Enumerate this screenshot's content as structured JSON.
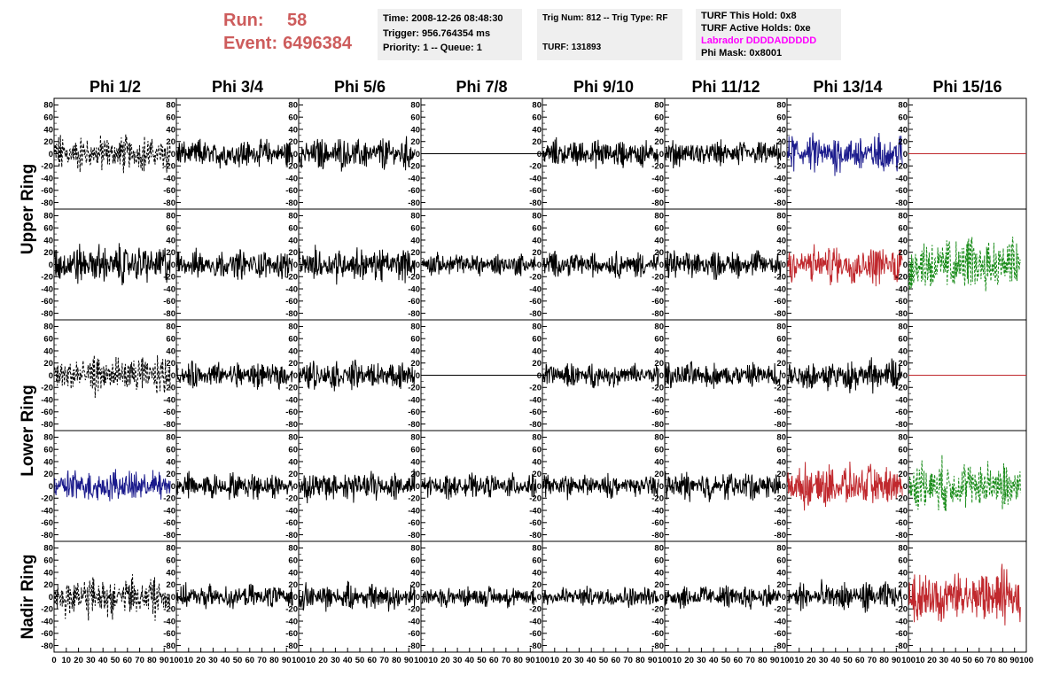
{
  "header": {
    "run_label": "Run:",
    "run_value": "58",
    "event_label": "Event:",
    "event_value": "6496384",
    "box1": [
      "Time: 2008-12-26 08:48:30",
      "Trigger: 956.764354 ms",
      "Priority: 1 -- Queue: 1"
    ],
    "box2": [
      "Trig Num: 812 -- Trig Type: RF",
      "",
      "TURF: 131893"
    ],
    "box3": [
      "TURF This Hold: 0x8",
      "TURF Active Holds: 0xe",
      "Labrador DDDDADDDDD",
      "Phi Mask: 0x8001"
    ],
    "labrador_color": "#ff00ff"
  },
  "chart_data": {
    "type": "line",
    "columns": [
      "Phi 1/2",
      "Phi 3/4",
      "Phi 5/6",
      "Phi 7/8",
      "Phi 9/10",
      "Phi 11/12",
      "Phi 13/14",
      "Phi 15/16"
    ],
    "row_groups": [
      {
        "label": "Upper Ring",
        "rows": [
          0,
          1
        ]
      },
      {
        "label": "Lower Ring",
        "rows": [
          2,
          3
        ]
      },
      {
        "label": "Nadir Ring",
        "rows": [
          4
        ]
      }
    ],
    "ylim": [
      -85,
      85
    ],
    "yticks": [
      80,
      60,
      40,
      20,
      0,
      -20,
      -40,
      -60,
      -80
    ],
    "xlim": [
      0,
      100
    ],
    "xticks": [
      0,
      10,
      20,
      30,
      40,
      50,
      60,
      70,
      80,
      90,
      100
    ],
    "xtick_labels_bottom": [
      "0",
      "10",
      "20",
      "30",
      "40",
      "50",
      "60",
      "70",
      "80",
      "90",
      "100"
    ],
    "colors": {
      "black": "#000000",
      "blue": "#1a1a8c",
      "red": "#c0282d",
      "green": "#1a8c1a"
    },
    "panels": [
      [
        {
          "style": "dashed",
          "color": "black",
          "amp": 28
        },
        {
          "style": "solid",
          "color": "black",
          "amp": 22
        },
        {
          "style": "solid",
          "color": "black",
          "amp": 24
        },
        {
          "style": "flat",
          "color": "black",
          "amp": 0
        },
        {
          "style": "solid",
          "color": "black",
          "amp": 22
        },
        {
          "style": "solid",
          "color": "black",
          "amp": 20
        },
        {
          "style": "solid",
          "color": "blue",
          "amp": 30
        },
        {
          "style": "flat",
          "color": "red",
          "amp": 0
        }
      ],
      [
        {
          "style": "solid",
          "color": "black",
          "amp": 30
        },
        {
          "style": "solid",
          "color": "black",
          "amp": 22
        },
        {
          "style": "solid",
          "color": "black",
          "amp": 26
        },
        {
          "style": "solid",
          "color": "black",
          "amp": 18
        },
        {
          "style": "solid",
          "color": "black",
          "amp": 20
        },
        {
          "style": "solid",
          "color": "black",
          "amp": 22
        },
        {
          "style": "solid",
          "color": "red",
          "amp": 30
        },
        {
          "style": "dashed",
          "color": "green",
          "amp": 45
        }
      ],
      [
        {
          "style": "dashed",
          "color": "black",
          "amp": 30
        },
        {
          "style": "solid",
          "color": "black",
          "amp": 20
        },
        {
          "style": "solid",
          "color": "black",
          "amp": 22
        },
        {
          "style": "flat",
          "color": "black",
          "amp": 0
        },
        {
          "style": "solid",
          "color": "black",
          "amp": 18
        },
        {
          "style": "solid",
          "color": "black",
          "amp": 20
        },
        {
          "style": "solid",
          "color": "black",
          "amp": 24
        },
        {
          "style": "flat",
          "color": "red",
          "amp": 0
        }
      ],
      [
        {
          "style": "solid",
          "color": "blue",
          "amp": 26
        },
        {
          "style": "solid",
          "color": "black",
          "amp": 20
        },
        {
          "style": "solid",
          "color": "black",
          "amp": 24
        },
        {
          "style": "solid",
          "color": "black",
          "amp": 18
        },
        {
          "style": "solid",
          "color": "black",
          "amp": 18
        },
        {
          "style": "solid",
          "color": "black",
          "amp": 22
        },
        {
          "style": "solid",
          "color": "red",
          "amp": 32
        },
        {
          "style": "dashed",
          "color": "green",
          "amp": 40
        }
      ],
      [
        {
          "style": "dashed",
          "color": "black",
          "amp": 32
        },
        {
          "style": "solid",
          "color": "black",
          "amp": 18
        },
        {
          "style": "solid",
          "color": "black",
          "amp": 20
        },
        {
          "style": "solid",
          "color": "black",
          "amp": 16
        },
        {
          "style": "solid",
          "color": "black",
          "amp": 16
        },
        {
          "style": "solid",
          "color": "black",
          "amp": 18
        },
        {
          "style": "solid",
          "color": "black",
          "amp": 22
        },
        {
          "style": "solid",
          "color": "red",
          "amp": 42
        }
      ]
    ]
  }
}
